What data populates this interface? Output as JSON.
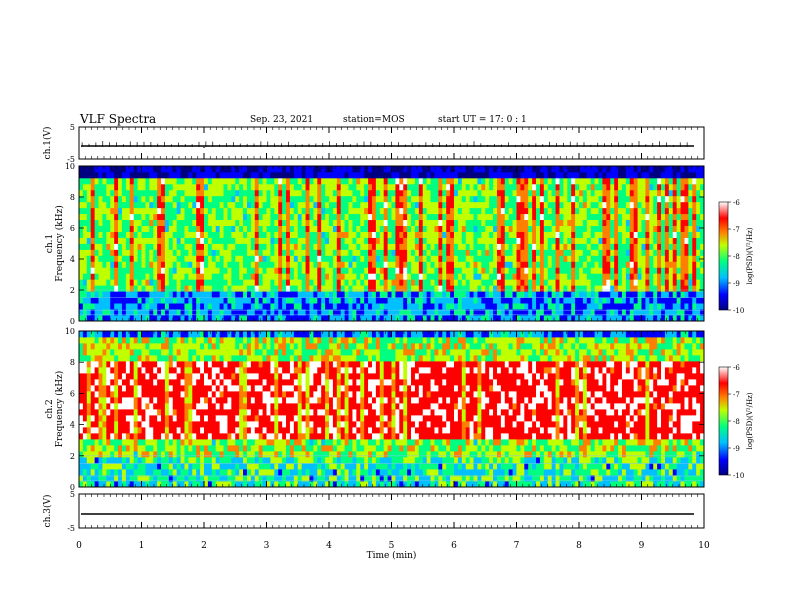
{
  "header": {
    "title": "VLF Spectra",
    "date": "Sep. 23, 2021",
    "station": "station=MOS",
    "start": "start  UT =   17: 0  : 1"
  },
  "chart_data": [
    {
      "type": "line",
      "panel": "ch1-waveform",
      "ylabel": "ch.1(V)",
      "ylim": [
        -5,
        5
      ],
      "yticks": [
        "5",
        "-5"
      ],
      "xlim": [
        0,
        10
      ],
      "series_note": "baseline near 0 V with periodic spikes"
    },
    {
      "type": "heatmap",
      "panel": "ch1-spectrogram",
      "ylabel": "ch.1\nFrequency (kHz)",
      "ylabel_line1": "ch.1",
      "ylabel_line2": "Frequency (kHz)",
      "ylim": [
        0,
        10
      ],
      "yticks": [
        "0",
        "2",
        "4",
        "6",
        "8",
        "10"
      ],
      "xlim": [
        0,
        10
      ],
      "colorbar": {
        "label": "log(PSD)(V²/Hz)",
        "range": [
          -10,
          -6
        ],
        "ticks": [
          "-6",
          "-7",
          "-8",
          "-9",
          "-10"
        ],
        "colors": [
          "#000080",
          "#0000ff",
          "#00c0ff",
          "#00ff80",
          "#c0ff00",
          "#ff8000",
          "#ff0000",
          "#ffffff"
        ]
      },
      "dominant_level": "green/yellow broadband with frequent red vertical bursts; dark blue below 2 kHz and black above 9.5 kHz"
    },
    {
      "type": "heatmap",
      "panel": "ch2-spectrogram",
      "ylabel": "ch.2\nFrequency (kHz)",
      "ylabel_line1": "ch.2",
      "ylabel_line2": "Frequency (kHz)",
      "ylim": [
        0,
        10
      ],
      "yticks": [
        "0",
        "2",
        "4",
        "6",
        "8",
        "10"
      ],
      "xlim": [
        0,
        10
      ],
      "colorbar": {
        "label": "log(PSD)(V²/Hz)",
        "range": [
          -10,
          -6
        ],
        "ticks": [
          "-6",
          "-7",
          "-8",
          "-9",
          "-10"
        ],
        "colors": [
          "#000080",
          "#0000ff",
          "#00c0ff",
          "#00ff80",
          "#c0ff00",
          "#ff8000",
          "#ff0000",
          "#ffffff"
        ]
      },
      "dominant_level": "red/white intense band from ~3 to ~8 kHz, green edges, cyan/blue below 3 kHz"
    },
    {
      "type": "line",
      "panel": "ch3-waveform",
      "ylabel": "ch.3(V)",
      "ylim": [
        -5,
        5
      ],
      "yticks": [
        "5",
        "-5"
      ],
      "xlim": [
        0,
        10
      ],
      "xlabel": "Time (min)",
      "xticks": [
        "0",
        "1",
        "2",
        "3",
        "4",
        "5",
        "6",
        "7",
        "8",
        "9",
        "10"
      ],
      "series_note": "flat near 0 V"
    }
  ]
}
